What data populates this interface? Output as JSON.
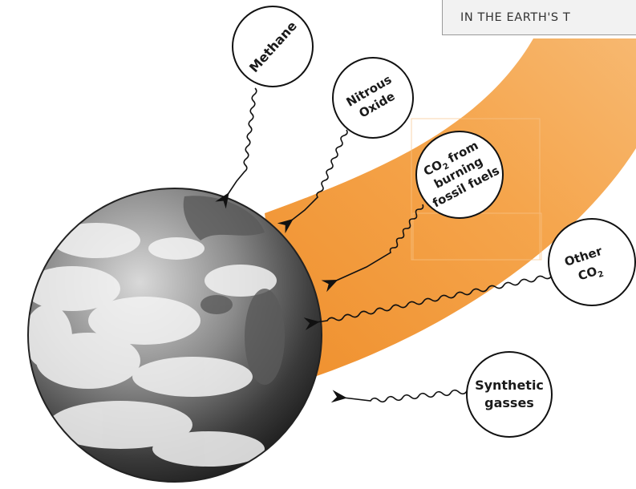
{
  "title": "IN THE EARTH'S T",
  "colors": {
    "band": "#f29a3a",
    "band_light": "#f7b66c",
    "bubble_fill": "#ffffff",
    "outline": "#111111",
    "title_box": "#f2f2f2"
  },
  "bubbles": {
    "methane": "Methane",
    "nitrous_line1": "Nitrous",
    "nitrous_line2": "Oxide",
    "co2_fossil_line1a": "CO",
    "co2_fossil_line1b": "2",
    "co2_fossil_line1c": "from",
    "co2_fossil_line2": "burning",
    "co2_fossil_line3": "fossil fuels",
    "other_line1": "Other",
    "other_line2a": "CO",
    "other_line2b": "2",
    "synthetic_line1": "Synthetic",
    "synthetic_line2": "gasses"
  },
  "icons": {
    "earth": "earth-globe-icon",
    "arrow": "squiggly-arrow-icon"
  }
}
